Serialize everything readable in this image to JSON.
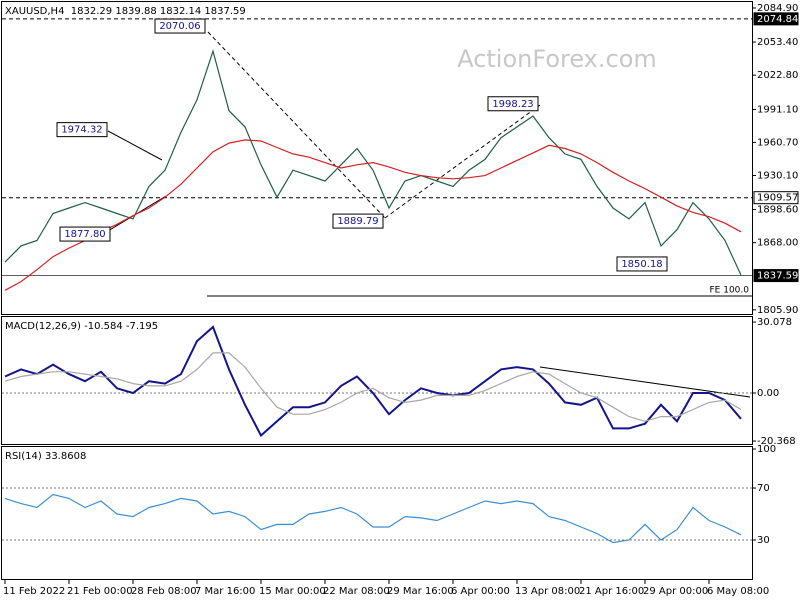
{
  "chart_data": [
    {
      "type": "line",
      "title": "XAUUSD,H4  1832.29 1839.88 1832.14 1837.59",
      "watermark": "ActionForex.com",
      "categories": [
        "11 Feb 2022",
        null,
        null,
        null,
        "21 Feb 00:00",
        null,
        null,
        null,
        "28 Feb 08:00",
        null,
        null,
        null,
        "7 Mar 16:00",
        null,
        null,
        null,
        "15 Mar 00:00",
        null,
        null,
        null,
        "22 Mar 08:00",
        null,
        null,
        null,
        "29 Mar 16:00",
        null,
        null,
        null,
        "6 Apr 00:00",
        null,
        null,
        null,
        "13 Apr 08:00",
        null,
        null,
        null,
        "21 Apr 16:00",
        null,
        null,
        null,
        "29 Apr 00:00",
        null,
        null,
        null,
        "6 May 08:00",
        null,
        null
      ],
      "series": [
        {
          "name": "XAUUSD",
          "color": "#1f5e4a",
          "values": [
            1850,
            1865,
            1870,
            1895,
            1900,
            1905,
            1900,
            1895,
            1890,
            1920,
            1935,
            1970,
            2000,
            2045,
            1990,
            1975,
            1940,
            1910,
            1935,
            1930,
            1925,
            1940,
            1955,
            1935,
            1900,
            1925,
            1930,
            1925,
            1920,
            1935,
            1945,
            1965,
            1975,
            1985,
            1965,
            1950,
            1945,
            1920,
            1900,
            1890,
            1905,
            1865,
            1880,
            1905,
            1890,
            1870,
            1838
          ]
        },
        {
          "name": "MA",
          "color": "#d42020",
          "values": [
            1824,
            1832,
            1843,
            1855,
            1863,
            1870,
            1878,
            1885,
            1893,
            1900,
            1910,
            1922,
            1937,
            1952,
            1960,
            1963,
            1962,
            1956,
            1950,
            1947,
            1942,
            1937,
            1940,
            1942,
            1938,
            1933,
            1930,
            1928,
            1927,
            1928,
            1930,
            1937,
            1944,
            1951,
            1958,
            1955,
            1950,
            1942,
            1933,
            1925,
            1918,
            1910,
            1902,
            1896,
            1892,
            1886,
            1878
          ]
        }
      ],
      "ylim": [
        1803,
        2089.5
      ],
      "yticks": [
        {
          "value": 2084.9,
          "label": "2084.90"
        },
        {
          "value": 2053.4,
          "label": "2053.40"
        },
        {
          "value": 2022.8,
          "label": "2022.80"
        },
        {
          "value": 1991.1,
          "label": "1991.10"
        },
        {
          "value": 1960.7,
          "label": "1960.70"
        },
        {
          "value": 1930.1,
          "label": "1930.10"
        },
        {
          "value": 1898.6,
          "label": "1898.60"
        },
        {
          "value": 1868.0,
          "label": "1868.00"
        },
        {
          "value": 1805.9,
          "label": "1805.90"
        }
      ],
      "levels": [
        {
          "value": 2074.84,
          "style": "dashed",
          "box": "dark"
        },
        {
          "value": 1909.57,
          "style": "dashed",
          "box": "light"
        },
        {
          "value": 1837.59,
          "style": "solid",
          "box": "dark"
        }
      ],
      "fe_level": {
        "value": 1818.7,
        "label": "FE 100.0"
      },
      "annotations": [
        2070.06,
        1974.32,
        {
          "value": 1877.8,
          "label": "1877.80"
        },
        1889.79,
        1998.23,
        1850.18
      ]
    },
    {
      "type": "line",
      "title": "MACD(12,26,9) -10.584 -7.195",
      "series": [
        {
          "name": "MACD",
          "color": "#14148c",
          "values": [
            7,
            10,
            8,
            12,
            8,
            5,
            9,
            2,
            0,
            5,
            4,
            8,
            22,
            28,
            10,
            -5,
            -18,
            -12,
            -6,
            -6,
            -4,
            3,
            7,
            0,
            -9,
            -3,
            2,
            0,
            -1,
            0,
            5,
            10,
            11,
            10,
            4,
            -4,
            -5,
            -2,
            -15,
            -15,
            -13,
            -5,
            -12,
            0,
            0,
            -3,
            -11
          ]
        },
        {
          "name": "Signal",
          "color": "#a8a8a8",
          "values": [
            5,
            7,
            8,
            9,
            9,
            8,
            7,
            6,
            4,
            3,
            3,
            5,
            10,
            17,
            17,
            11,
            2,
            -6,
            -9,
            -9,
            -7,
            -4,
            0,
            2,
            -2,
            -4,
            -3,
            -1,
            -1,
            -1,
            1,
            4,
            7,
            9,
            8,
            4,
            0,
            -2,
            -6,
            -10,
            -12,
            -10,
            -10,
            -7,
            -4,
            -3,
            -7
          ]
        }
      ],
      "ylim": [
        -21.2,
        31.8
      ],
      "yticks": [
        30.078,
        {
          "value": 0,
          "label": "0.00"
        },
        -20.368
      ],
      "levels": [
        0
      ]
    },
    {
      "type": "line",
      "title": "RSI(14) 33.8608",
      "series": [
        {
          "name": "RSI",
          "color": "#3a8fd8",
          "values": [
            62,
            58,
            55,
            65,
            62,
            55,
            60,
            50,
            48,
            55,
            58,
            62,
            60,
            50,
            52,
            48,
            38,
            42,
            42,
            50,
            52,
            55,
            50,
            40,
            40,
            48,
            47,
            45,
            50,
            55,
            60,
            58,
            60,
            58,
            48,
            45,
            40,
            35,
            28,
            30,
            42,
            30,
            38,
            55,
            45,
            40,
            34
          ]
        }
      ],
      "ylim": [
        0.8,
        100.8
      ],
      "yticks": [
        100,
        70,
        30
      ],
      "levels": [
        70,
        30
      ]
    }
  ]
}
